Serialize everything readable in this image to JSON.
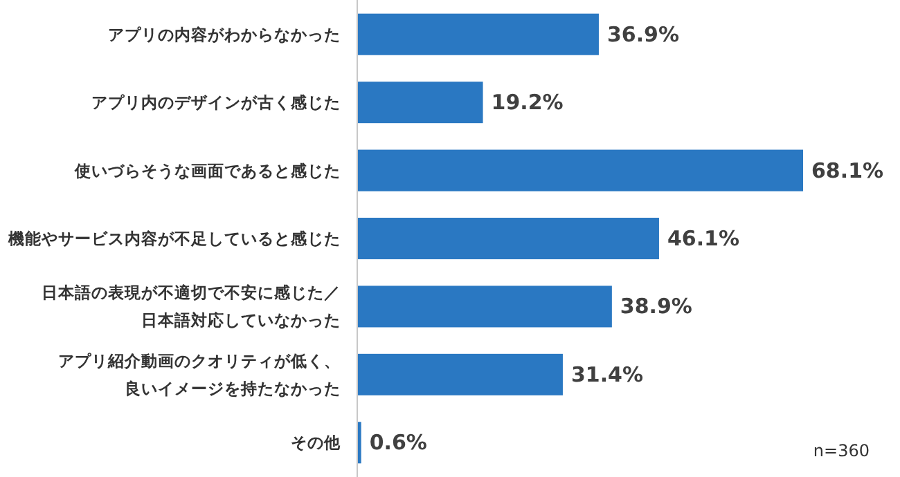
{
  "chart_data": {
    "type": "bar",
    "orientation": "horizontal",
    "categories": [
      "アプリの内容がわからなかった",
      "アプリ内のデザインが古く感じた",
      "使いづらそうな画面であると感じた",
      "機能やサービス内容が不足していると感じた",
      "日本語の表現が不適切で不安に感じた／日本語対応していなかった",
      "アプリ紹介動画のクオリティが低く、良いイメージを持たなかった",
      "その他"
    ],
    "values": [
      36.9,
      19.2,
      68.1,
      46.1,
      38.9,
      31.4,
      0.6
    ],
    "value_labels": [
      "36.9%",
      "19.2%",
      "68.1%",
      "46.1%",
      "38.9%",
      "31.4%",
      "0.6%"
    ],
    "color": "#2a78c2",
    "annotations": [
      "n=360"
    ]
  }
}
